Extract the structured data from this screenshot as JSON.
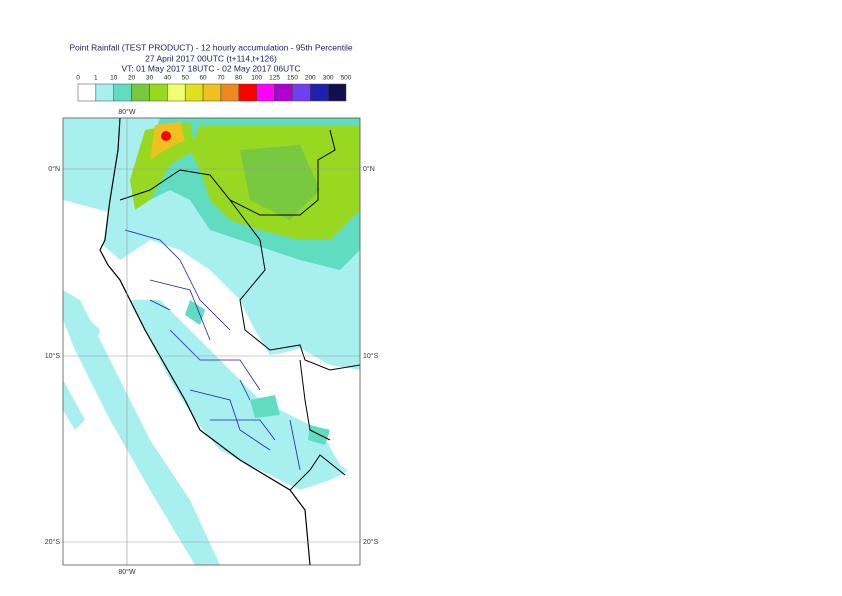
{
  "header": {
    "title": "Point Rainfall (TEST PRODUCT) - 12 hourly accumulation - 95th Percentile",
    "run": "27 April 2017 00UTC (t+114,t+126)",
    "valid": "VT: 01 May 2017 18UTC - 02 May 2017 06UTC"
  },
  "legend": {
    "ticks": [
      0,
      1,
      10,
      20,
      30,
      40,
      50,
      60,
      70,
      80,
      100,
      125,
      150,
      200,
      300,
      500
    ],
    "colors": [
      "#ffffff",
      "#a8f0f0",
      "#60dcc0",
      "#78c840",
      "#98d820",
      "#f0ff70",
      "#e0e020",
      "#f0c020",
      "#f08820",
      "#ff0000",
      "#ff00ff",
      "#b000d0",
      "#7040f0",
      "#2020b0",
      "#101050"
    ]
  },
  "map": {
    "lon_top": "80°W",
    "lon_bottom": "80°W",
    "lat_left": [
      "0°N",
      "10°S",
      "20°S"
    ],
    "lat_right": [
      "0°N",
      "10°S",
      "20°S"
    ]
  }
}
